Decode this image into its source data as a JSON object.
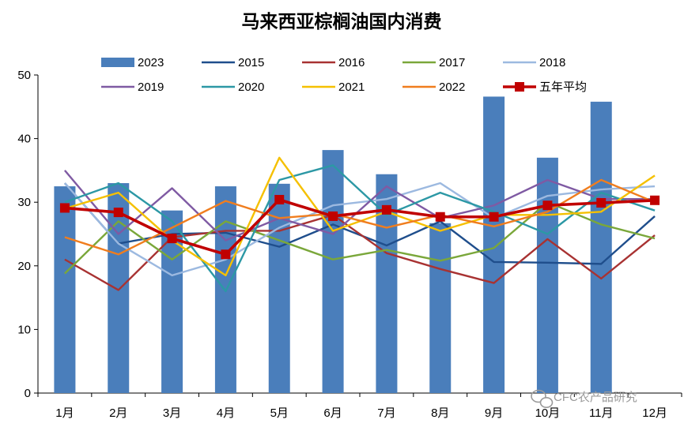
{
  "chart_data": {
    "type": "bar",
    "title": "马来西亚棕榈油国内消费",
    "categories": [
      "1月",
      "2月",
      "3月",
      "4月",
      "5月",
      "6月",
      "7月",
      "8月",
      "9月",
      "10月",
      "11月",
      "12月"
    ],
    "ylim": [
      0,
      50
    ],
    "yticks": [
      0,
      10,
      20,
      30,
      40,
      50
    ],
    "grid": false,
    "legend_position": "top",
    "bar_series": {
      "name": "2023",
      "color": "#4a7ebb",
      "values": [
        32.5,
        33.0,
        28.7,
        32.5,
        32.9,
        38.2,
        34.4,
        26.7,
        46.6,
        37.0,
        45.8,
        null
      ]
    },
    "line_series": [
      {
        "name": "2015",
        "color": "#1f4e8c",
        "values": [
          33.0,
          23.5,
          25.0,
          25.2,
          23.0,
          26.5,
          23.2,
          27.0,
          20.6,
          20.5,
          20.3,
          27.8
        ]
      },
      {
        "name": "2016",
        "color": "#a83232",
        "values": [
          21.0,
          16.2,
          24.5,
          25.5,
          25.5,
          28.0,
          22.0,
          19.5,
          17.3,
          24.2,
          18.0,
          24.8
        ]
      },
      {
        "name": "2017",
        "color": "#7aa73a",
        "values": [
          18.8,
          27.0,
          21.0,
          27.0,
          24.0,
          21.0,
          22.5,
          20.8,
          22.8,
          30.0,
          26.5,
          24.3
        ]
      },
      {
        "name": "2018",
        "color": "#9cb9e0",
        "values": [
          33.0,
          23.5,
          18.5,
          21.0,
          26.0,
          29.5,
          30.5,
          33.0,
          27.5,
          31.0,
          32.0,
          32.5
        ]
      },
      {
        "name": "2019",
        "color": "#7f5aa3",
        "values": [
          35.0,
          25.0,
          32.2,
          24.0,
          27.5,
          25.0,
          32.5,
          27.5,
          29.5,
          33.5,
          30.5,
          30.5
        ]
      },
      {
        "name": "2020",
        "color": "#2c98a5",
        "values": [
          30.0,
          33.0,
          27.0,
          16.0,
          33.5,
          35.8,
          28.0,
          31.5,
          28.5,
          25.0,
          31.5,
          28.7
        ]
      },
      {
        "name": "2021",
        "color": "#f5c000",
        "values": [
          29.0,
          31.5,
          24.0,
          18.5,
          37.0,
          25.5,
          28.5,
          25.5,
          28.0,
          28.0,
          28.5,
          34.2
        ]
      },
      {
        "name": "2022",
        "color": "#f07d1e",
        "values": [
          24.5,
          21.8,
          26.0,
          30.2,
          27.5,
          28.2,
          26.0,
          28.0,
          26.2,
          28.5,
          33.5,
          30.0
        ]
      }
    ],
    "average_series": {
      "name": "五年平均",
      "color": "#c00000",
      "values": [
        29.1,
        28.4,
        24.3,
        21.8,
        30.4,
        27.8,
        28.8,
        27.7,
        27.7,
        29.5,
        29.9,
        30.3
      ]
    }
  },
  "watermark": "CFC农产品研究"
}
